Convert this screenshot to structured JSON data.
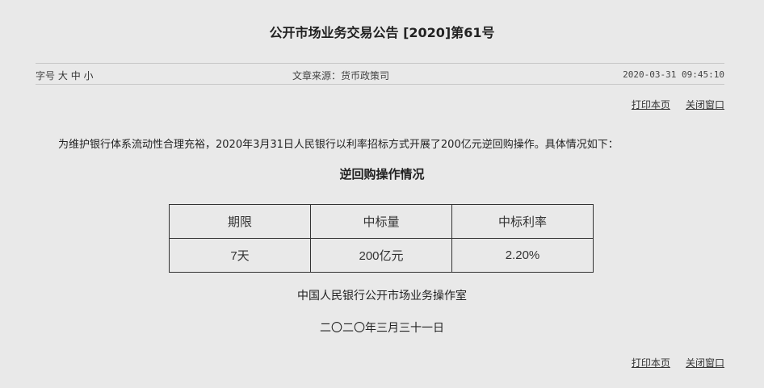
{
  "title": "公开市场业务交易公告 [2020]第61号",
  "meta": {
    "font_size_label": "字号",
    "font_sizes": [
      "大",
      "中",
      "小"
    ],
    "source": "文章来源：货币政策司",
    "datetime": "2020-03-31 09:45:10"
  },
  "actions": {
    "print": "打印本页",
    "close": "关闭窗口"
  },
  "paragraph": "为维护银行体系流动性合理充裕，2020年3月31日人民银行以利率招标方式开展了200亿元逆回购操作。具体情况如下：",
  "table": {
    "title": "逆回购操作情况",
    "headers": [
      "期限",
      "中标量",
      "中标利率"
    ],
    "rows": [
      [
        "7天",
        "200亿元",
        "2.20%"
      ]
    ]
  },
  "signature": "中国人民银行公开市场业务操作室",
  "date": "二〇二〇年三月三十一日"
}
